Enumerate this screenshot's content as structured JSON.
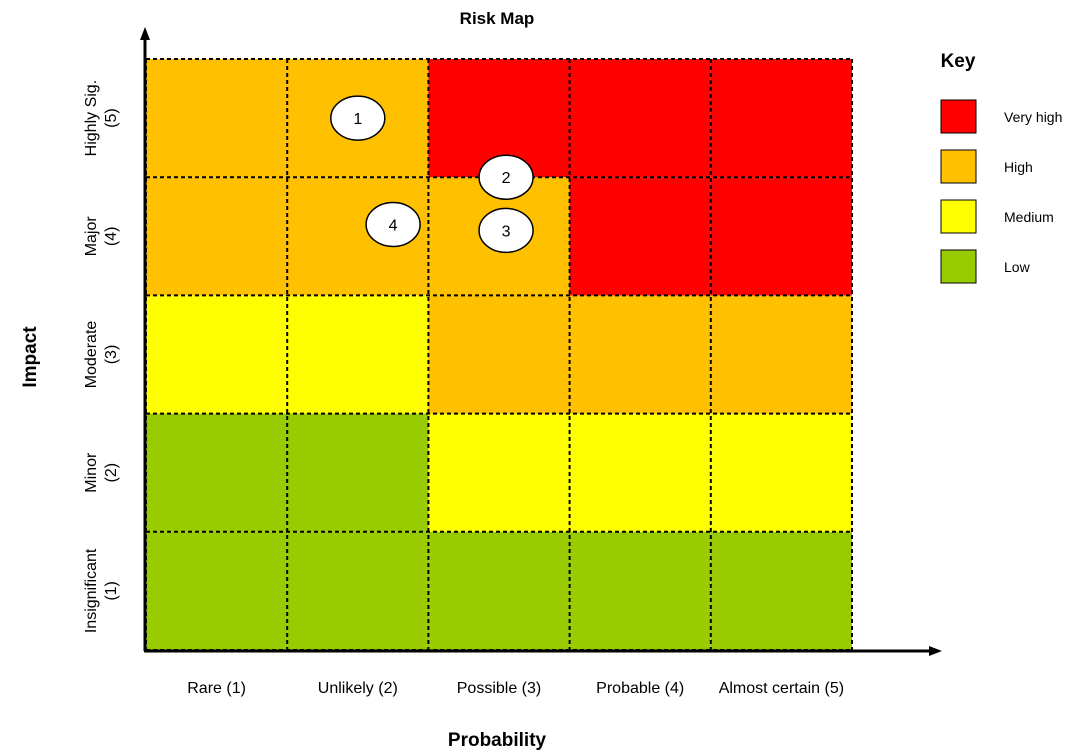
{
  "chart_data": {
    "type": "heatmap",
    "title": "Risk Map",
    "xlabel": "Probability",
    "ylabel": "Impact",
    "x_categories": [
      "Rare (1)",
      "Unlikely (2)",
      "Possible (3)",
      "Probable (4)",
      "Almost certain (5)"
    ],
    "y_categories": [
      [
        "Insignificant",
        "(1)"
      ],
      [
        "Minor",
        "(2)"
      ],
      [
        "Moderate",
        "(3)"
      ],
      [
        "Major",
        "(4)"
      ],
      [
        "Highly Sig.",
        "(5)"
      ]
    ],
    "grid": true,
    "levels_by_impact": [
      [
        "Low",
        "Low",
        "Low",
        "Low",
        "Low"
      ],
      [
        "Low",
        "Low",
        "Medium",
        "Medium",
        "Medium"
      ],
      [
        "Medium",
        "Medium",
        "High",
        "High",
        "High"
      ],
      [
        "High",
        "High",
        "High",
        "Very high",
        "Very high"
      ],
      [
        "High",
        "High",
        "Very high",
        "Very high",
        "Very high"
      ]
    ],
    "level_colors": {
      "Very high": "#ff0000",
      "High": "#ffc000",
      "Medium": "#ffff00",
      "Low": "#99cc00"
    },
    "points": [
      {
        "label": "1",
        "probability": 2.5,
        "impact": 4.5
      },
      {
        "label": "2",
        "probability": 3.55,
        "impact": 4.0
      },
      {
        "label": "3",
        "probability": 3.55,
        "impact": 3.55
      },
      {
        "label": "4",
        "probability": 2.75,
        "impact": 3.6
      }
    ],
    "legend": {
      "title": "Key",
      "position": "right",
      "items": [
        {
          "label": "Very high",
          "color": "#ff0000"
        },
        {
          "label": "High",
          "color": "#ffc000"
        },
        {
          "label": "Medium",
          "color": "#ffff00"
        },
        {
          "label": "Low",
          "color": "#99cc00"
        }
      ]
    }
  }
}
